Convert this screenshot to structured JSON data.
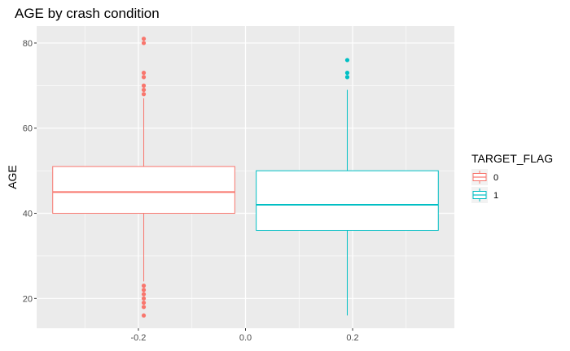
{
  "chart_data": {
    "type": "boxplot",
    "title": "AGE by crash condition",
    "xlabel": "",
    "ylabel": "AGE",
    "xlim": [
      -0.39,
      0.39
    ],
    "ylim": [
      13,
      84
    ],
    "x_ticks": [
      {
        "value": -0.2,
        "label": "-0.2"
      },
      {
        "value": 0.0,
        "label": "0.0"
      },
      {
        "value": 0.2,
        "label": "0.2"
      }
    ],
    "y_ticks": [
      {
        "value": 20,
        "label": "20"
      },
      {
        "value": 40,
        "label": "40"
      },
      {
        "value": 60,
        "label": "60"
      },
      {
        "value": 80,
        "label": "80"
      }
    ],
    "grid": true,
    "background": "#ebebeb",
    "legend": {
      "title": "TARGET_FLAG",
      "position": "right",
      "entries": [
        {
          "label": "0",
          "color": "#f8766d"
        },
        {
          "label": "1",
          "color": "#00bfc4"
        }
      ]
    },
    "series": [
      {
        "group": "0",
        "color": "#f8766d",
        "x_center": -0.19,
        "x_range": [
          -0.36,
          -0.02
        ],
        "whisker_low": 24,
        "q1": 40,
        "median": 45,
        "q3": 51,
        "whisker_high": 67,
        "outliers": [
          16,
          18,
          19,
          20,
          21,
          22,
          23,
          68,
          69,
          70,
          72,
          73,
          80,
          81
        ]
      },
      {
        "group": "1",
        "color": "#00bfc4",
        "x_center": 0.19,
        "x_range": [
          0.02,
          0.36
        ],
        "whisker_low": 16,
        "q1": 36,
        "median": 42,
        "q3": 50,
        "whisker_high": 69,
        "outliers": [
          72,
          73,
          76
        ]
      }
    ]
  }
}
